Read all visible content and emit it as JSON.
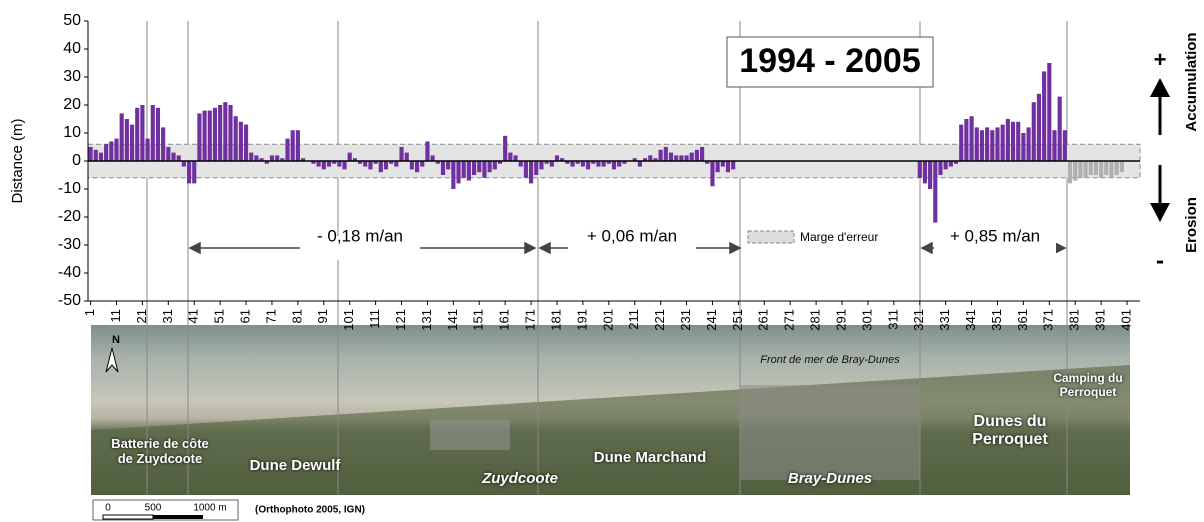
{
  "chart_data": {
    "type": "bar",
    "title": "1994 - 2005",
    "y_label": "Distance (m)",
    "xlim": [
      0,
      406
    ],
    "ylim": [
      -50,
      50
    ],
    "yticks": [
      -50,
      -40,
      -30,
      -20,
      -10,
      0,
      10,
      20,
      30,
      40,
      50
    ],
    "xticks": [
      1,
      11,
      21,
      31,
      41,
      51,
      61,
      71,
      81,
      91,
      101,
      111,
      121,
      131,
      141,
      151,
      161,
      171,
      181,
      191,
      201,
      211,
      221,
      231,
      241,
      251,
      261,
      271,
      281,
      291,
      301,
      311,
      321,
      331,
      341,
      351,
      361,
      371,
      381,
      391,
      401
    ],
    "error_band": [
      -6,
      6
    ],
    "error_band_label": "Marge d'erreur",
    "series": [
      {
        "color": "#7030a0",
        "x": [
          1,
          3,
          5,
          7,
          9,
          11,
          13,
          15,
          17,
          19,
          21,
          23,
          25,
          27,
          29,
          31,
          33,
          35,
          37,
          39,
          41,
          43,
          45,
          47,
          49,
          51,
          53,
          55,
          57,
          59,
          61,
          63,
          65,
          67,
          69,
          71,
          73,
          75,
          77,
          79,
          81,
          83,
          85,
          87,
          89,
          91,
          93,
          95,
          97,
          99,
          101,
          103,
          105,
          107,
          109,
          111,
          113,
          115,
          117,
          119,
          121,
          123,
          125,
          127,
          129,
          131,
          133,
          135,
          137,
          139,
          141,
          143,
          145,
          147,
          149,
          151,
          153,
          155,
          157,
          159,
          161,
          163,
          165,
          167,
          169,
          171,
          173,
          175,
          177,
          179,
          181,
          183,
          185,
          187,
          189,
          191,
          193,
          195,
          197,
          199,
          201,
          203,
          205,
          207,
          209,
          211,
          213,
          215,
          217,
          219,
          221,
          223,
          225,
          227,
          229,
          231,
          233,
          235,
          237,
          239,
          241,
          243,
          245,
          247,
          249,
          321,
          323,
          325,
          327,
          329,
          331,
          333,
          335,
          337,
          339,
          341,
          343,
          345,
          347,
          349,
          351,
          353,
          355,
          357,
          359,
          361,
          363,
          365,
          367,
          369,
          371,
          373,
          375,
          377
        ],
        "values": [
          5,
          4,
          3,
          6,
          7,
          8,
          17,
          15,
          13,
          19,
          20,
          8,
          20,
          19,
          12,
          5,
          3,
          2,
          -2,
          -8,
          -8,
          17,
          18,
          18,
          19,
          20,
          21,
          20,
          16,
          14,
          13,
          3,
          2,
          1,
          -1,
          2,
          2,
          1,
          8,
          11,
          11,
          1,
          0,
          -1,
          -2,
          -3,
          -2,
          -1,
          -2,
          -3,
          3,
          1,
          -1,
          -2,
          -3,
          -1,
          -4,
          -3,
          -1,
          -2,
          5,
          3,
          -3,
          -4,
          -2,
          7,
          2,
          -1,
          -5,
          -3,
          -10,
          -8,
          -6,
          -7,
          -5,
          -4,
          -6,
          -4,
          -3,
          -1,
          9,
          3,
          2,
          -2,
          -6,
          -8,
          -5,
          -3,
          -1,
          -2,
          2,
          1,
          -1,
          -2,
          -1,
          -2,
          -3,
          -1,
          -2,
          -2,
          -1,
          -3,
          -2,
          -1,
          0,
          1,
          -2,
          1,
          2,
          1,
          4,
          5,
          3,
          2,
          2,
          2,
          3,
          4,
          5,
          -1,
          -9,
          -4,
          -2,
          -4,
          -3,
          -6,
          -8,
          -10,
          -22,
          -5,
          -3,
          -2,
          -1,
          13,
          15,
          16,
          12,
          11,
          12,
          11,
          12,
          13,
          15,
          14,
          14,
          10,
          12,
          21,
          24,
          32,
          35,
          11,
          23,
          11
        ]
      },
      {
        "color": "#b0b0b0",
        "x": [
          379,
          381,
          383,
          385,
          387,
          389,
          391,
          393,
          395,
          397,
          399
        ],
        "values": [
          -8,
          -7,
          -6,
          -6,
          -5,
          -5,
          -6,
          -5,
          -6,
          -5,
          -4
        ]
      }
    ],
    "annotations": [
      "- 0,18 m/an",
      "+ 0,06 m/an",
      "+ 0,85 m/an"
    ],
    "side_labels": {
      "plus": "+",
      "accumulation": "Accumulation",
      "minus": "-",
      "erosion": "Erosion"
    }
  },
  "photo": {
    "north": "N",
    "labels": [
      "Front de mer de Bray-Dunes",
      "Batterie de côte de Zuydcoote",
      "Dune Dewulf",
      "Zuydcoote",
      "Dune Marchand",
      "Bray-Dunes",
      "Dunes du Perroquet",
      "Camping du Perroquet"
    ],
    "scale": [
      "0",
      "500",
      "1000 m"
    ],
    "source": "(Orthophoto 2005, IGN)"
  }
}
